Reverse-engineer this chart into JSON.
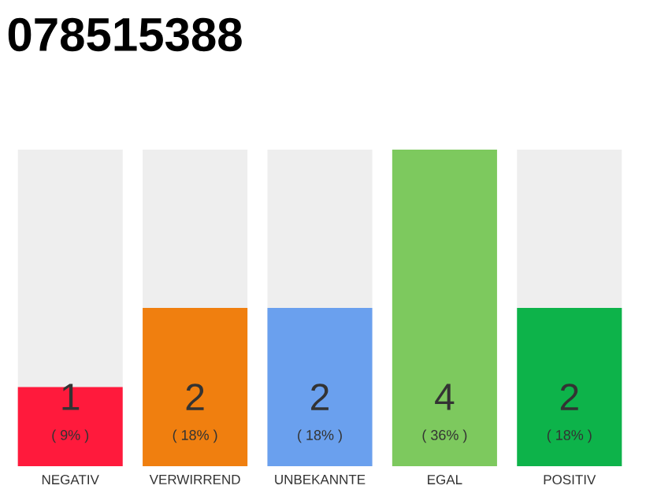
{
  "chart_data": {
    "type": "bar",
    "title": "078515388",
    "categories": [
      "NEGATIV",
      "VERWIRREND",
      "UNBEKANNTE",
      "EGAL",
      "POSITIV"
    ],
    "values": [
      1,
      2,
      2,
      4,
      2
    ],
    "colors": [
      "#ff1a3c",
      "#f07f0f",
      "#6aa0ee",
      "#7dc95e",
      "#0db34a"
    ],
    "data_labels": true,
    "annotations": [
      "( 9% )",
      "( 18% )",
      "( 18% )",
      "( 36% )",
      "( 18% )"
    ]
  }
}
